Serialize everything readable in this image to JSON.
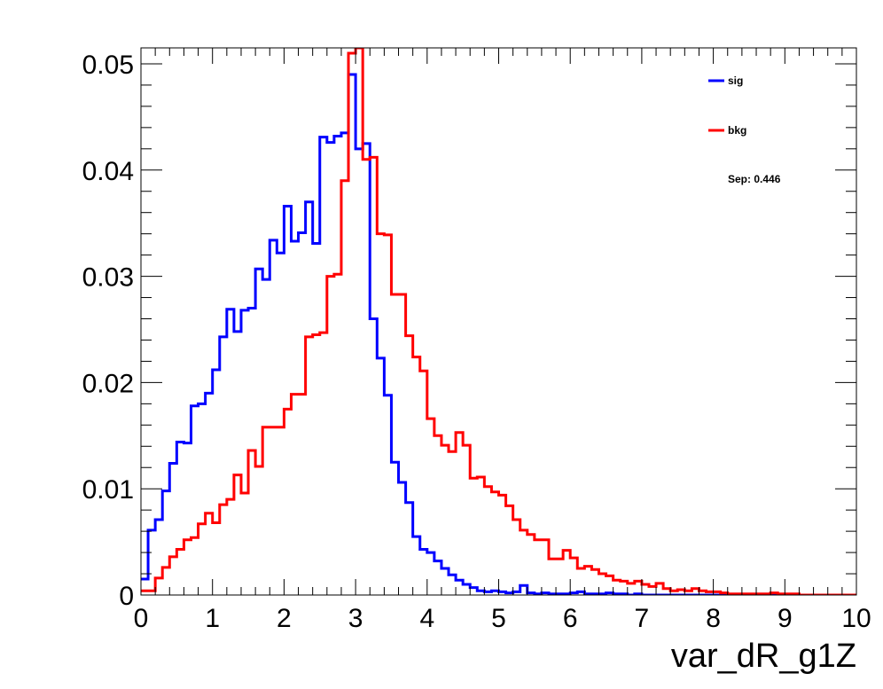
{
  "chart_data": {
    "type": "histogram",
    "title": "",
    "xlabel": "var_dR_g1Z",
    "ylabel": "",
    "xlim": [
      0,
      10
    ],
    "ylim": [
      0,
      0.0515
    ],
    "bin_edges": {
      "start": 0,
      "width": 0.1,
      "count": 100
    },
    "xticks": [
      0,
      1,
      2,
      3,
      4,
      5,
      6,
      7,
      8,
      9,
      10
    ],
    "xtick_labels": [
      "0",
      "1",
      "2",
      "3",
      "4",
      "5",
      "6",
      "7",
      "8",
      "9",
      "10"
    ],
    "yticks": [
      0,
      0.01,
      0.02,
      0.03,
      0.04,
      0.05
    ],
    "ytick_labels": [
      "0",
      "0.01",
      "0.02",
      "0.03",
      "0.04",
      "0.05"
    ],
    "grid": false,
    "legend_position": "top-right",
    "annotation": "Sep: 0.446",
    "series": [
      {
        "name": "sig",
        "color": "#0000ff",
        "values": [
          0.0015,
          0.0061,
          0.0071,
          0.0098,
          0.0124,
          0.0144,
          0.0143,
          0.0178,
          0.018,
          0.019,
          0.0212,
          0.0243,
          0.0269,
          0.0248,
          0.0268,
          0.027,
          0.0307,
          0.0297,
          0.0334,
          0.0322,
          0.0366,
          0.0333,
          0.0341,
          0.037,
          0.0331,
          0.0431,
          0.0426,
          0.0432,
          0.0435,
          0.049,
          0.042,
          0.0425,
          0.026,
          0.0223,
          0.0188,
          0.0125,
          0.0106,
          0.0087,
          0.0055,
          0.0043,
          0.004,
          0.0032,
          0.0025,
          0.0019,
          0.0014,
          0.001,
          0.0007,
          0.0004,
          0.0003,
          0.0004,
          0.0003,
          0.0002,
          0.0003,
          0.0009,
          0.0002,
          0.0001,
          0.0002,
          0.0001,
          0.0001,
          0.0001,
          0.0002,
          0.0003,
          0.0001,
          0.0001,
          0.0001,
          0.0002,
          0.0001,
          0.0001,
          0.0,
          0.0001,
          0.0,
          0.0,
          0.0,
          0.0,
          0.0,
          0.0,
          0.0,
          0.0,
          0.0,
          0.0,
          0.0,
          0.0,
          0.0,
          0.0,
          0.0,
          0.0,
          0.0,
          0.0,
          0.0,
          0.0,
          0.0,
          0.0,
          0.0,
          0.0,
          0.0,
          0.0,
          0.0,
          0.0,
          0.0,
          0.0
        ]
      },
      {
        "name": "bkg",
        "color": "#ff0000",
        "values": [
          0.0004,
          0.0004,
          0.0016,
          0.0026,
          0.0036,
          0.0043,
          0.0052,
          0.0054,
          0.0067,
          0.0077,
          0.0068,
          0.0085,
          0.009,
          0.0113,
          0.0096,
          0.0136,
          0.0121,
          0.0158,
          0.0158,
          0.0158,
          0.0175,
          0.0189,
          0.0189,
          0.0243,
          0.0245,
          0.0247,
          0.03,
          0.0302,
          0.039,
          0.051,
          0.054,
          0.041,
          0.0412,
          0.034,
          0.0339,
          0.0283,
          0.0283,
          0.0244,
          0.0224,
          0.0211,
          0.0166,
          0.015,
          0.0141,
          0.0135,
          0.0153,
          0.0141,
          0.011,
          0.0111,
          0.0102,
          0.0097,
          0.0094,
          0.0084,
          0.0071,
          0.0061,
          0.0057,
          0.0052,
          0.0052,
          0.0034,
          0.0034,
          0.0042,
          0.0035,
          0.0025,
          0.0027,
          0.0024,
          0.002,
          0.0018,
          0.0014,
          0.0013,
          0.0011,
          0.0013,
          0.001,
          0.0008,
          0.0011,
          0.0006,
          0.0004,
          0.0005,
          0.0004,
          0.0006,
          0.0004,
          0.0003,
          0.0003,
          0.0002,
          0.0001,
          0.0001,
          0.0001,
          0.0001,
          0.0001,
          0.0001,
          0.0002,
          0.0001,
          0.0001,
          0.0001,
          0.0,
          0.0,
          0.0,
          0.0,
          0.0,
          0.0,
          0.0,
          0.0
        ]
      }
    ]
  }
}
